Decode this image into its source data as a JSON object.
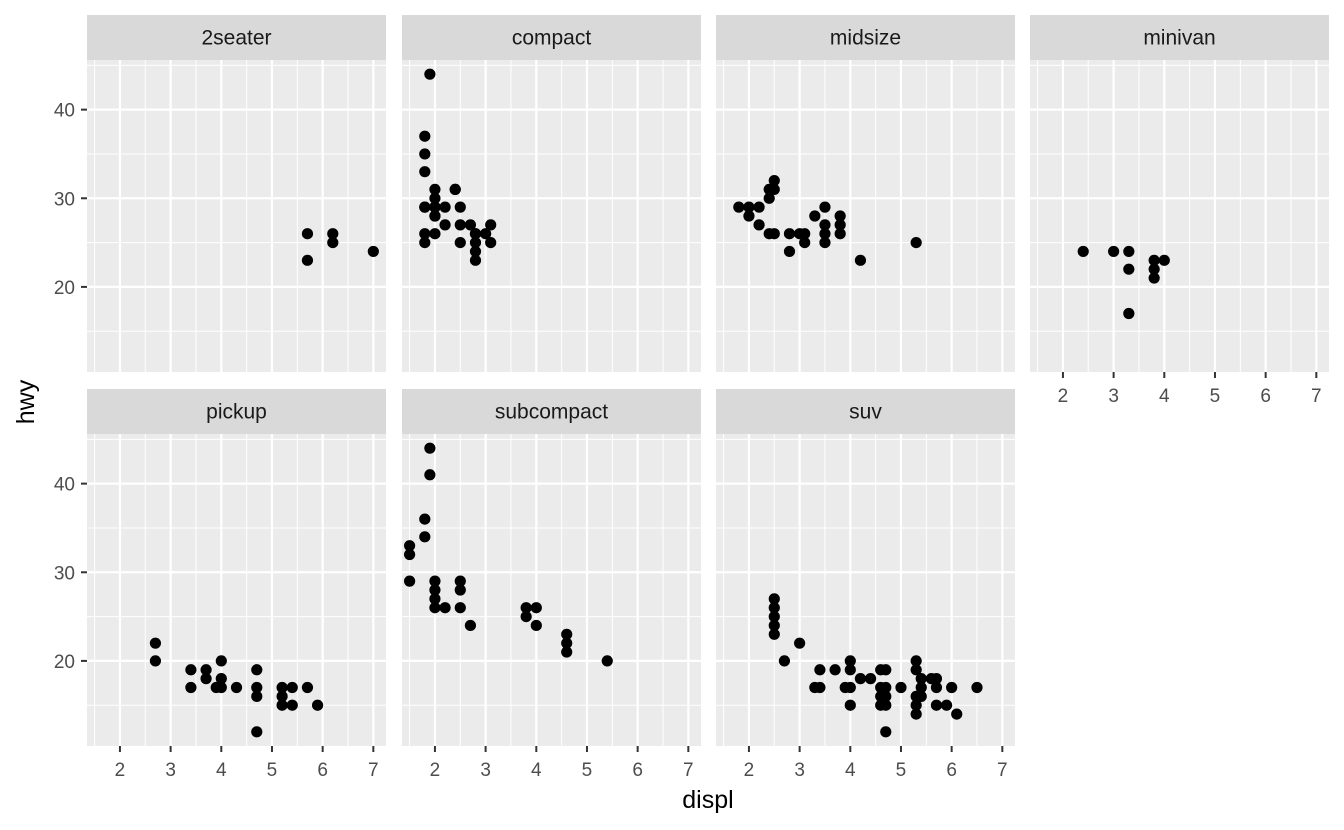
{
  "chart_data": {
    "type": "scatter",
    "xlabel": "displ",
    "ylabel": "hwy",
    "xlim": [
      1.35,
      7.25
    ],
    "ylim": [
      10.4,
      45.6
    ],
    "x_ticks": [
      2,
      3,
      4,
      5,
      6,
      7
    ],
    "y_ticks": [
      20,
      30,
      40
    ],
    "grid": true,
    "point_color": "#000000",
    "panel_bg": "#ebebeb",
    "strip_bg": "#d9d9d9",
    "grid_color": "#ffffff",
    "facets": [
      {
        "label": "2seater",
        "points": [
          [
            5.7,
            26
          ],
          [
            5.7,
            23
          ],
          [
            6.2,
            26
          ],
          [
            6.2,
            25
          ],
          [
            7.0,
            24
          ]
        ]
      },
      {
        "label": "compact",
        "points": [
          [
            1.8,
            29
          ],
          [
            1.8,
            29
          ],
          [
            2.0,
            31
          ],
          [
            2.0,
            30
          ],
          [
            2.8,
            26
          ],
          [
            2.8,
            26
          ],
          [
            3.1,
            27
          ],
          [
            1.8,
            26
          ],
          [
            1.8,
            25
          ],
          [
            2.0,
            28
          ],
          [
            2.0,
            29
          ],
          [
            2.8,
            25
          ],
          [
            3.1,
            25
          ],
          [
            2.2,
            27
          ],
          [
            2.2,
            29
          ],
          [
            2.4,
            31
          ],
          [
            2.4,
            31
          ],
          [
            3.0,
            26
          ],
          [
            1.8,
            33
          ],
          [
            1.8,
            35
          ],
          [
            1.8,
            37
          ],
          [
            1.9,
            44
          ],
          [
            2.0,
            26
          ],
          [
            2.0,
            29
          ],
          [
            2.5,
            29
          ],
          [
            2.5,
            27
          ],
          [
            2.5,
            25
          ],
          [
            2.8,
            23
          ],
          [
            2.8,
            24
          ],
          [
            2.0,
            28
          ],
          [
            2.0,
            29
          ],
          [
            2.7,
            27
          ]
        ]
      },
      {
        "label": "midsize",
        "points": [
          [
            1.8,
            29
          ],
          [
            2.0,
            29
          ],
          [
            2.0,
            28
          ],
          [
            2.2,
            29
          ],
          [
            2.2,
            27
          ],
          [
            2.4,
            31
          ],
          [
            2.4,
            30
          ],
          [
            2.4,
            26
          ],
          [
            2.5,
            32
          ],
          [
            2.5,
            31
          ],
          [
            2.5,
            26
          ],
          [
            2.8,
            24
          ],
          [
            2.8,
            26
          ],
          [
            3.0,
            26
          ],
          [
            3.1,
            26
          ],
          [
            3.1,
            25
          ],
          [
            3.3,
            28
          ],
          [
            3.5,
            29
          ],
          [
            3.5,
            27
          ],
          [
            3.5,
            26
          ],
          [
            3.5,
            25
          ],
          [
            3.8,
            28
          ],
          [
            3.8,
            26
          ],
          [
            3.8,
            27
          ],
          [
            4.2,
            23
          ],
          [
            5.3,
            25
          ]
        ]
      },
      {
        "label": "minivan",
        "points": [
          [
            2.4,
            24
          ],
          [
            3.0,
            24
          ],
          [
            3.3,
            24
          ],
          [
            3.3,
            22
          ],
          [
            3.3,
            17
          ],
          [
            3.8,
            23
          ],
          [
            3.8,
            22
          ],
          [
            3.8,
            21
          ],
          [
            4.0,
            23
          ]
        ]
      },
      {
        "label": "pickup",
        "points": [
          [
            2.7,
            22
          ],
          [
            2.7,
            20
          ],
          [
            3.4,
            19
          ],
          [
            3.4,
            17
          ],
          [
            3.7,
            19
          ],
          [
            3.7,
            18
          ],
          [
            3.9,
            17
          ],
          [
            4.0,
            20
          ],
          [
            4.0,
            18
          ],
          [
            4.0,
            17
          ],
          [
            4.3,
            17
          ],
          [
            4.7,
            19
          ],
          [
            4.7,
            17
          ],
          [
            4.7,
            16
          ],
          [
            4.7,
            12
          ],
          [
            5.2,
            17
          ],
          [
            5.2,
            16
          ],
          [
            5.2,
            15
          ],
          [
            5.4,
            17
          ],
          [
            5.4,
            15
          ],
          [
            5.7,
            17
          ],
          [
            5.9,
            15
          ]
        ]
      },
      {
        "label": "subcompact",
        "points": [
          [
            1.5,
            33
          ],
          [
            1.5,
            32
          ],
          [
            1.5,
            29
          ],
          [
            1.8,
            36
          ],
          [
            1.8,
            34
          ],
          [
            1.9,
            44
          ],
          [
            1.9,
            41
          ],
          [
            2.0,
            29
          ],
          [
            2.0,
            28
          ],
          [
            2.0,
            27
          ],
          [
            2.0,
            26
          ],
          [
            2.2,
            26
          ],
          [
            2.5,
            29
          ],
          [
            2.5,
            28
          ],
          [
            2.5,
            26
          ],
          [
            2.7,
            24
          ],
          [
            3.8,
            26
          ],
          [
            3.8,
            25
          ],
          [
            4.0,
            26
          ],
          [
            4.0,
            24
          ],
          [
            4.6,
            23
          ],
          [
            4.6,
            22
          ],
          [
            4.6,
            21
          ],
          [
            5.4,
            20
          ]
        ]
      },
      {
        "label": "suv",
        "points": [
          [
            2.5,
            27
          ],
          [
            2.5,
            26
          ],
          [
            2.5,
            25
          ],
          [
            2.5,
            24
          ],
          [
            2.5,
            23
          ],
          [
            2.7,
            20
          ],
          [
            3.0,
            22
          ],
          [
            3.3,
            17
          ],
          [
            3.4,
            19
          ],
          [
            3.4,
            17
          ],
          [
            3.7,
            19
          ],
          [
            3.9,
            17
          ],
          [
            4.0,
            20
          ],
          [
            4.0,
            19
          ],
          [
            4.0,
            17
          ],
          [
            4.0,
            15
          ],
          [
            4.2,
            18
          ],
          [
            4.4,
            18
          ],
          [
            4.6,
            19
          ],
          [
            4.6,
            17
          ],
          [
            4.6,
            16
          ],
          [
            4.6,
            15
          ],
          [
            4.7,
            19
          ],
          [
            4.7,
            17
          ],
          [
            4.7,
            16
          ],
          [
            4.7,
            15
          ],
          [
            4.7,
            12
          ],
          [
            5.0,
            17
          ],
          [
            5.3,
            20
          ],
          [
            5.3,
            19
          ],
          [
            5.3,
            16
          ],
          [
            5.3,
            15
          ],
          [
            5.3,
            14
          ],
          [
            5.4,
            18
          ],
          [
            5.4,
            17
          ],
          [
            5.4,
            16
          ],
          [
            5.6,
            18
          ],
          [
            5.7,
            18
          ],
          [
            5.7,
            17
          ],
          [
            5.7,
            15
          ],
          [
            5.9,
            15
          ],
          [
            6.0,
            17
          ],
          [
            6.1,
            14
          ],
          [
            6.5,
            17
          ]
        ]
      }
    ]
  }
}
